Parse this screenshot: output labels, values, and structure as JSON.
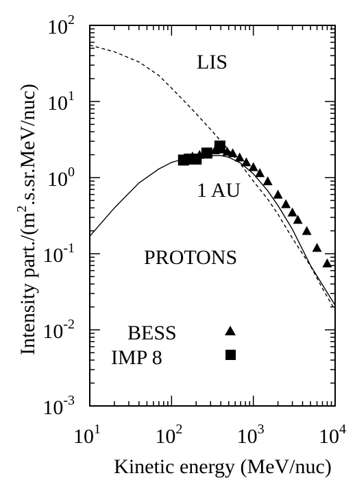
{
  "chart_data": {
    "type": "scatter",
    "title": "",
    "xlabel": "Kinetic energy (MeV/nuc)",
    "ylabel": "Intensity part./(m².s.sr.MeV/nuc)",
    "x_scale": "log",
    "y_scale": "log",
    "xlim": [
      10,
      10000
    ],
    "ylim": [
      0.001,
      100
    ],
    "x_ticks": [
      10,
      100,
      1000,
      10000
    ],
    "y_ticks": [
      0.001,
      0.01,
      0.1,
      1,
      10,
      100
    ],
    "grid": false,
    "annotations": {
      "lis": "LIS",
      "one_au": "1 AU",
      "particle": "PROTONS"
    },
    "curves": [
      {
        "name": "LIS",
        "style": "dashed",
        "x": [
          10,
          20,
          40,
          70,
          100,
          150,
          200,
          300,
          500,
          700,
          1000,
          1500,
          2000,
          3000,
          5000,
          7000,
          10000
        ],
        "y": [
          55,
          45,
          33,
          22,
          15,
          9.6,
          6.9,
          4.3,
          2.3,
          1.5,
          0.9,
          0.52,
          0.33,
          0.16,
          0.069,
          0.035,
          0.018
        ]
      },
      {
        "name": "1 AU",
        "style": "solid",
        "x": [
          10,
          20,
          40,
          70,
          100,
          150,
          200,
          300,
          400,
          500,
          700,
          1000,
          1500,
          2000,
          3000,
          5000,
          7000,
          10000
        ],
        "y": [
          0.17,
          0.4,
          0.85,
          1.3,
          1.58,
          1.8,
          1.9,
          1.95,
          1.95,
          1.85,
          1.55,
          1.12,
          0.67,
          0.43,
          0.21,
          0.07,
          0.039,
          0.021
        ]
      }
    ],
    "series": [
      {
        "name": "BESS",
        "marker": "triangle",
        "x": [
          180,
          220,
          280,
          340,
          420,
          480,
          560,
          680,
          820,
          1000,
          1200,
          1500,
          2000,
          2500,
          3000,
          3500,
          4500,
          6000,
          8000
        ],
        "y": [
          1.9,
          2.0,
          2.15,
          2.3,
          2.35,
          2.2,
          2.1,
          1.85,
          1.6,
          1.38,
          1.15,
          0.9,
          0.6,
          0.45,
          0.35,
          0.28,
          0.2,
          0.12,
          0.075
        ]
      },
      {
        "name": "IMP 8",
        "marker": "square",
        "x": [
          140,
          165,
          200,
          270,
          390
        ],
        "y": [
          1.7,
          1.75,
          1.75,
          2.1,
          2.6
        ]
      }
    ],
    "legend": {
      "placement": "bottom-left",
      "entries": [
        "BESS",
        "IMP 8"
      ]
    }
  }
}
